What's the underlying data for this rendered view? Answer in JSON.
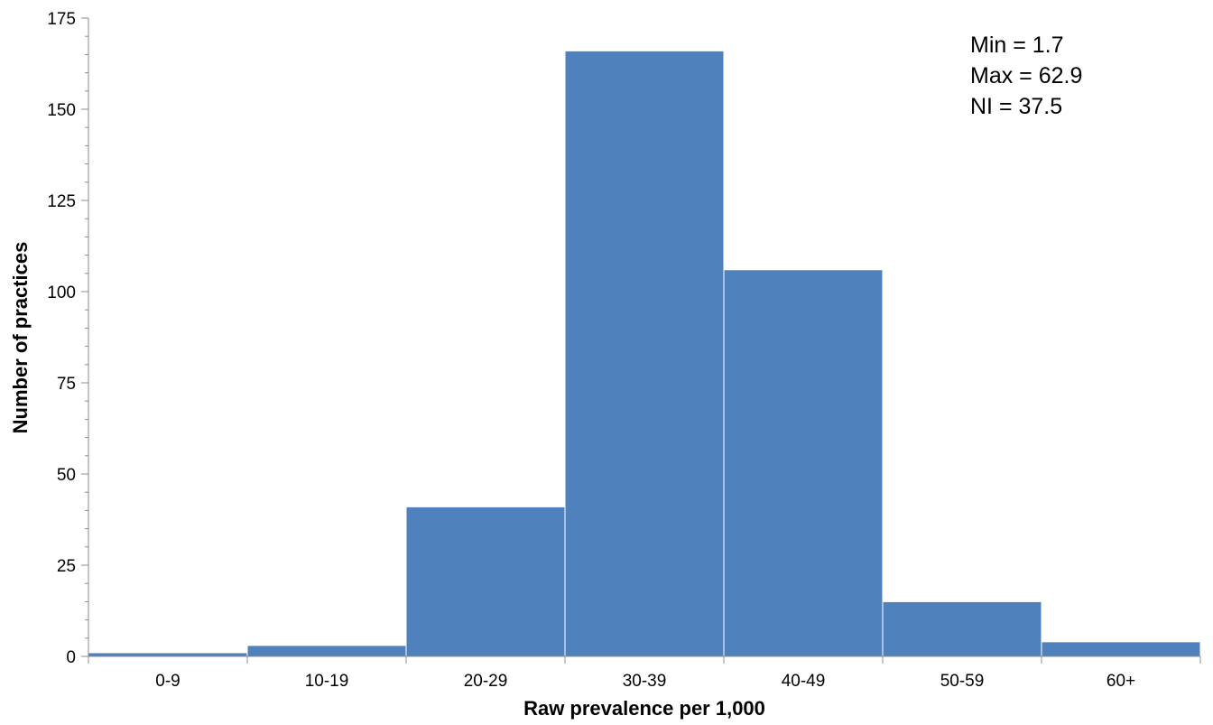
{
  "chart_data": {
    "type": "bar",
    "title": "",
    "xlabel": "Raw prevalence per 1,000",
    "ylabel": "Number of practices",
    "categories": [
      "0-9",
      "10-19",
      "20-29",
      "30-39",
      "40-49",
      "50-59",
      "60+"
    ],
    "values": [
      1,
      3,
      41,
      166,
      106,
      15,
      4
    ],
    "ylim": [
      0,
      175
    ],
    "yticks": [
      0,
      25,
      50,
      75,
      100,
      125,
      150,
      175
    ],
    "yticks_minor_step": 5,
    "grid": false,
    "legend": "none",
    "bar_color": "#4f81bd",
    "bar_edge_color": "#ffffff",
    "annotations": [
      "Min = 1.7",
      "Max = 62.9",
      "NI = 37.5"
    ]
  }
}
